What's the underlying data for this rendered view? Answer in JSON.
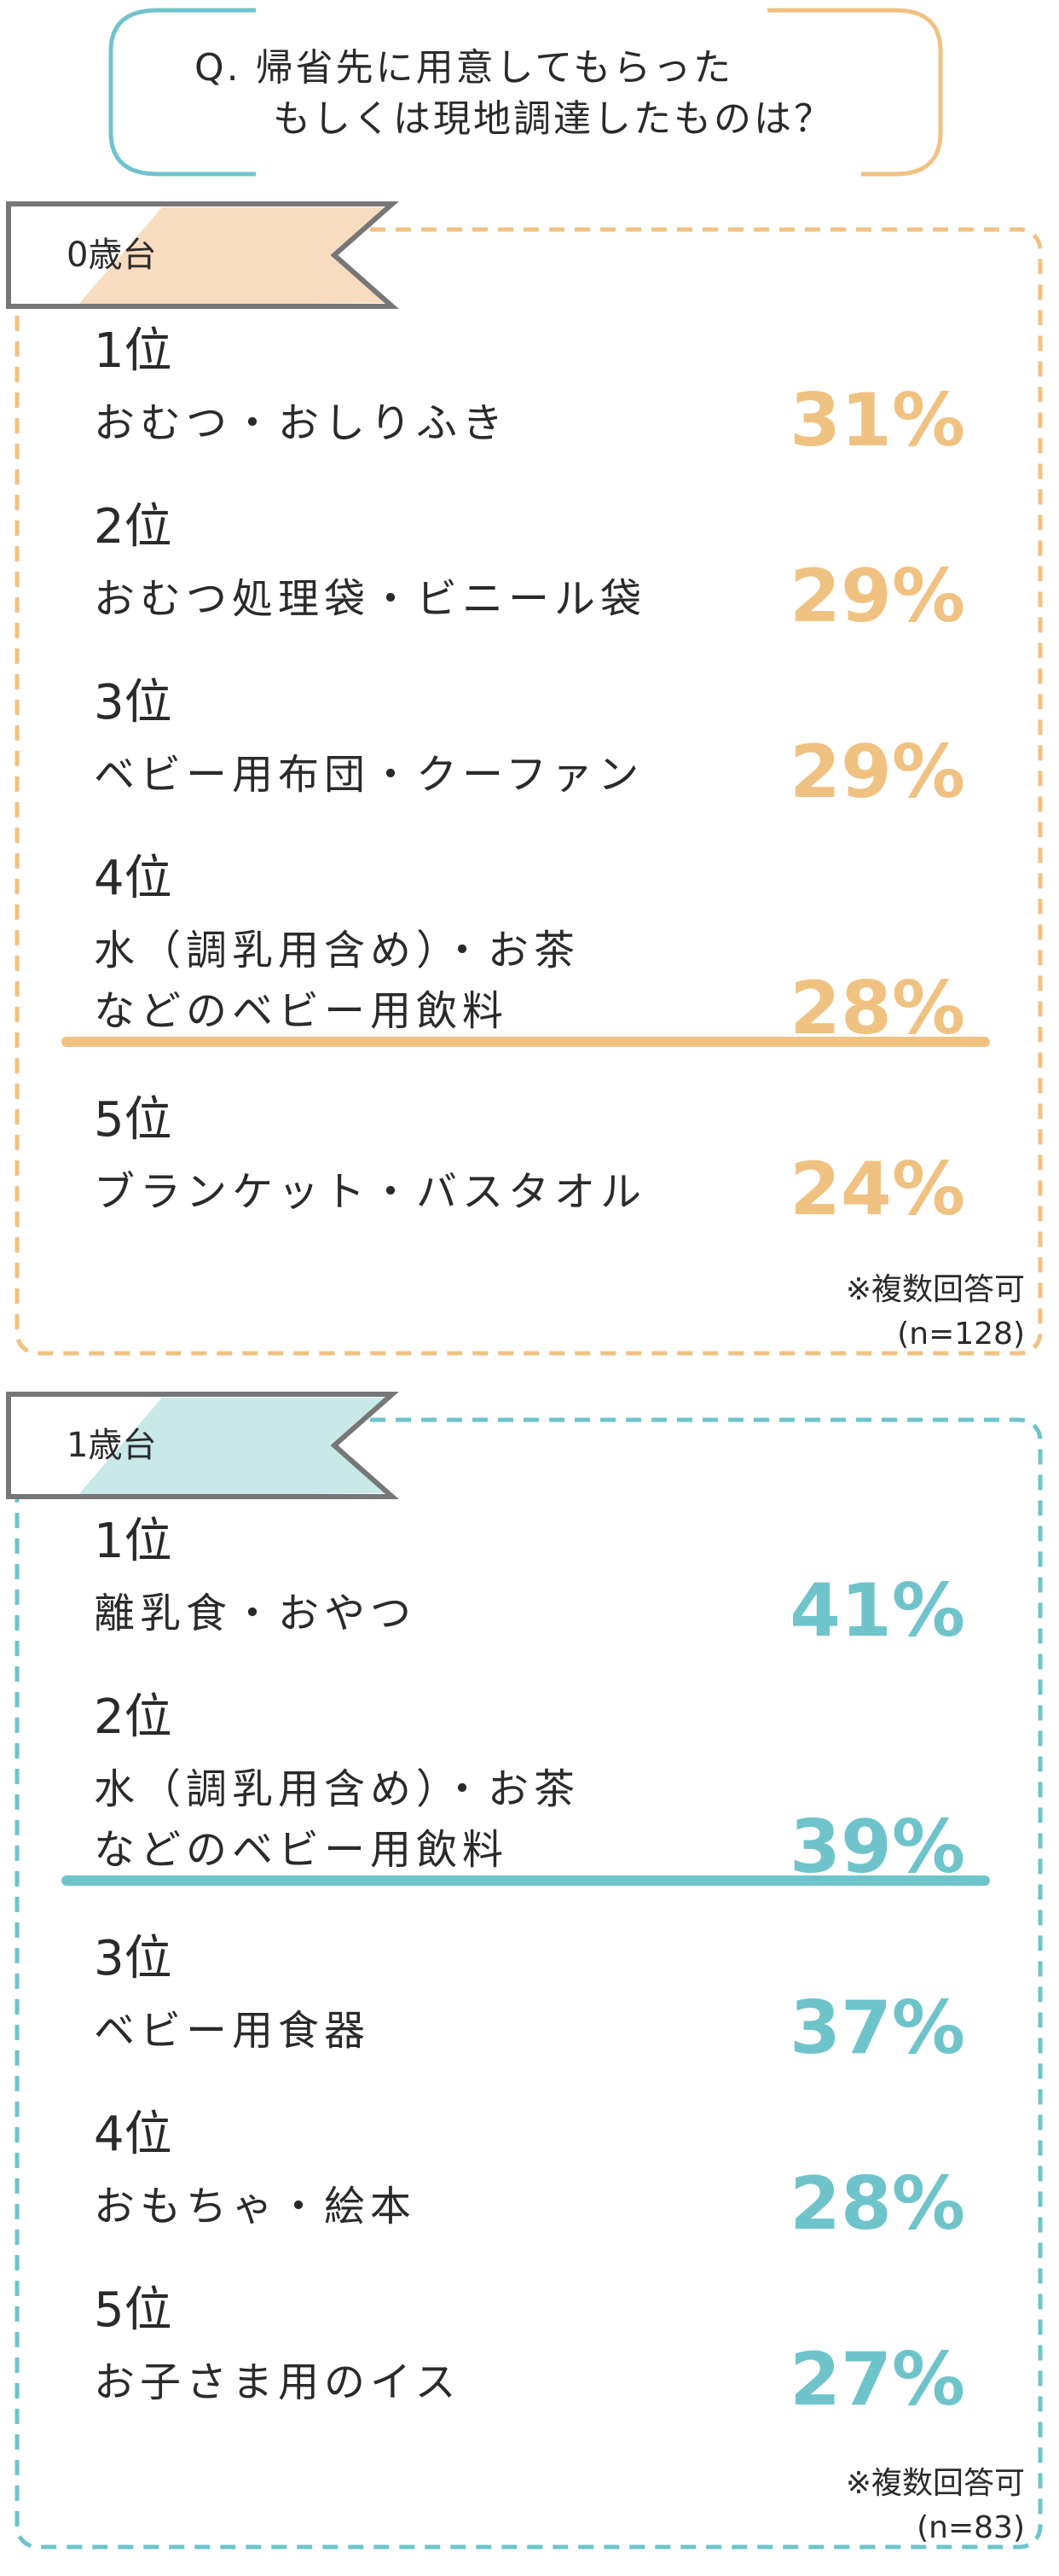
{
  "question": {
    "lines": [
      "Q. 帰省先に用意してもらった",
      "もしくは現地調達したものは？"
    ]
  },
  "sections": [
    {
      "label": "0歳台",
      "color": "#f0c282",
      "tint": "#f7dcc0",
      "items": [
        {
          "rank": "1位",
          "name": [
            "おむつ・おしりふき"
          ],
          "percent": "31%"
        },
        {
          "rank": "2位",
          "name": [
            "おむつ処理袋・ビニール袋"
          ],
          "percent": "29%"
        },
        {
          "rank": "3位",
          "name": [
            "ベビー用布団・クーファン"
          ],
          "percent": "29%"
        },
        {
          "rank": "4位",
          "name": [
            "水（調乳用含め）・お茶",
            "などのベビー用飲料"
          ],
          "percent": "28%"
        },
        {
          "rank": "5位",
          "name": [
            "ブランケット・バスタオル"
          ],
          "percent": "24%"
        }
      ],
      "note": "※複数回答可",
      "n": "(n=128)"
    },
    {
      "label": "1歳台",
      "color": "#6fc4cc",
      "tint": "#c8e8ea",
      "items": [
        {
          "rank": "1位",
          "name": [
            "離乳食・おやつ"
          ],
          "percent": "41%"
        },
        {
          "rank": "2位",
          "name": [
            "水（調乳用含め）・お茶",
            "などのベビー用飲料"
          ],
          "percent": "39%"
        },
        {
          "rank": "3位",
          "name": [
            "ベビー用食器"
          ],
          "percent": "37%"
        },
        {
          "rank": "4位",
          "name": [
            "おもちゃ・絵本"
          ],
          "percent": "28%"
        },
        {
          "rank": "5位",
          "name": [
            "お子さま用のイス"
          ],
          "percent": "27%"
        }
      ],
      "note": "※複数回答可",
      "n": "(n=83)"
    }
  ]
}
